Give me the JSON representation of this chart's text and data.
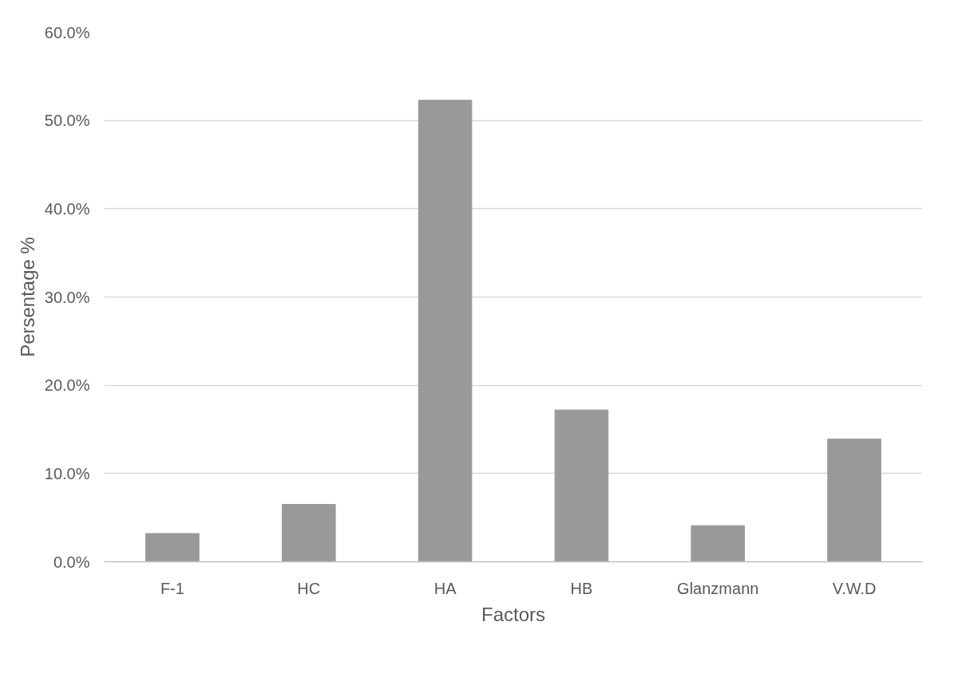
{
  "chart_data": {
    "type": "bar",
    "xlabel": "Factors",
    "ylabel": "Persentage %",
    "categories": [
      "F-1",
      "HC",
      "HA",
      "HB",
      "Glanzmann",
      "V.W.D"
    ],
    "values": [
      3.2,
      6.5,
      52.3,
      17.2,
      4.1,
      13.9
    ],
    "color": "#999999",
    "ylim": [
      0,
      60
    ],
    "yticks": [
      {
        "value": 0,
        "label": "0.0%"
      },
      {
        "value": 10,
        "label": "10.0%"
      },
      {
        "value": 20,
        "label": "20.0%"
      },
      {
        "value": 30,
        "label": "30.0%"
      },
      {
        "value": 40,
        "label": "40.0%"
      },
      {
        "value": 50,
        "label": "50.0%"
      },
      {
        "value": 60,
        "label": "60.0%"
      }
    ],
    "grid": "y"
  }
}
